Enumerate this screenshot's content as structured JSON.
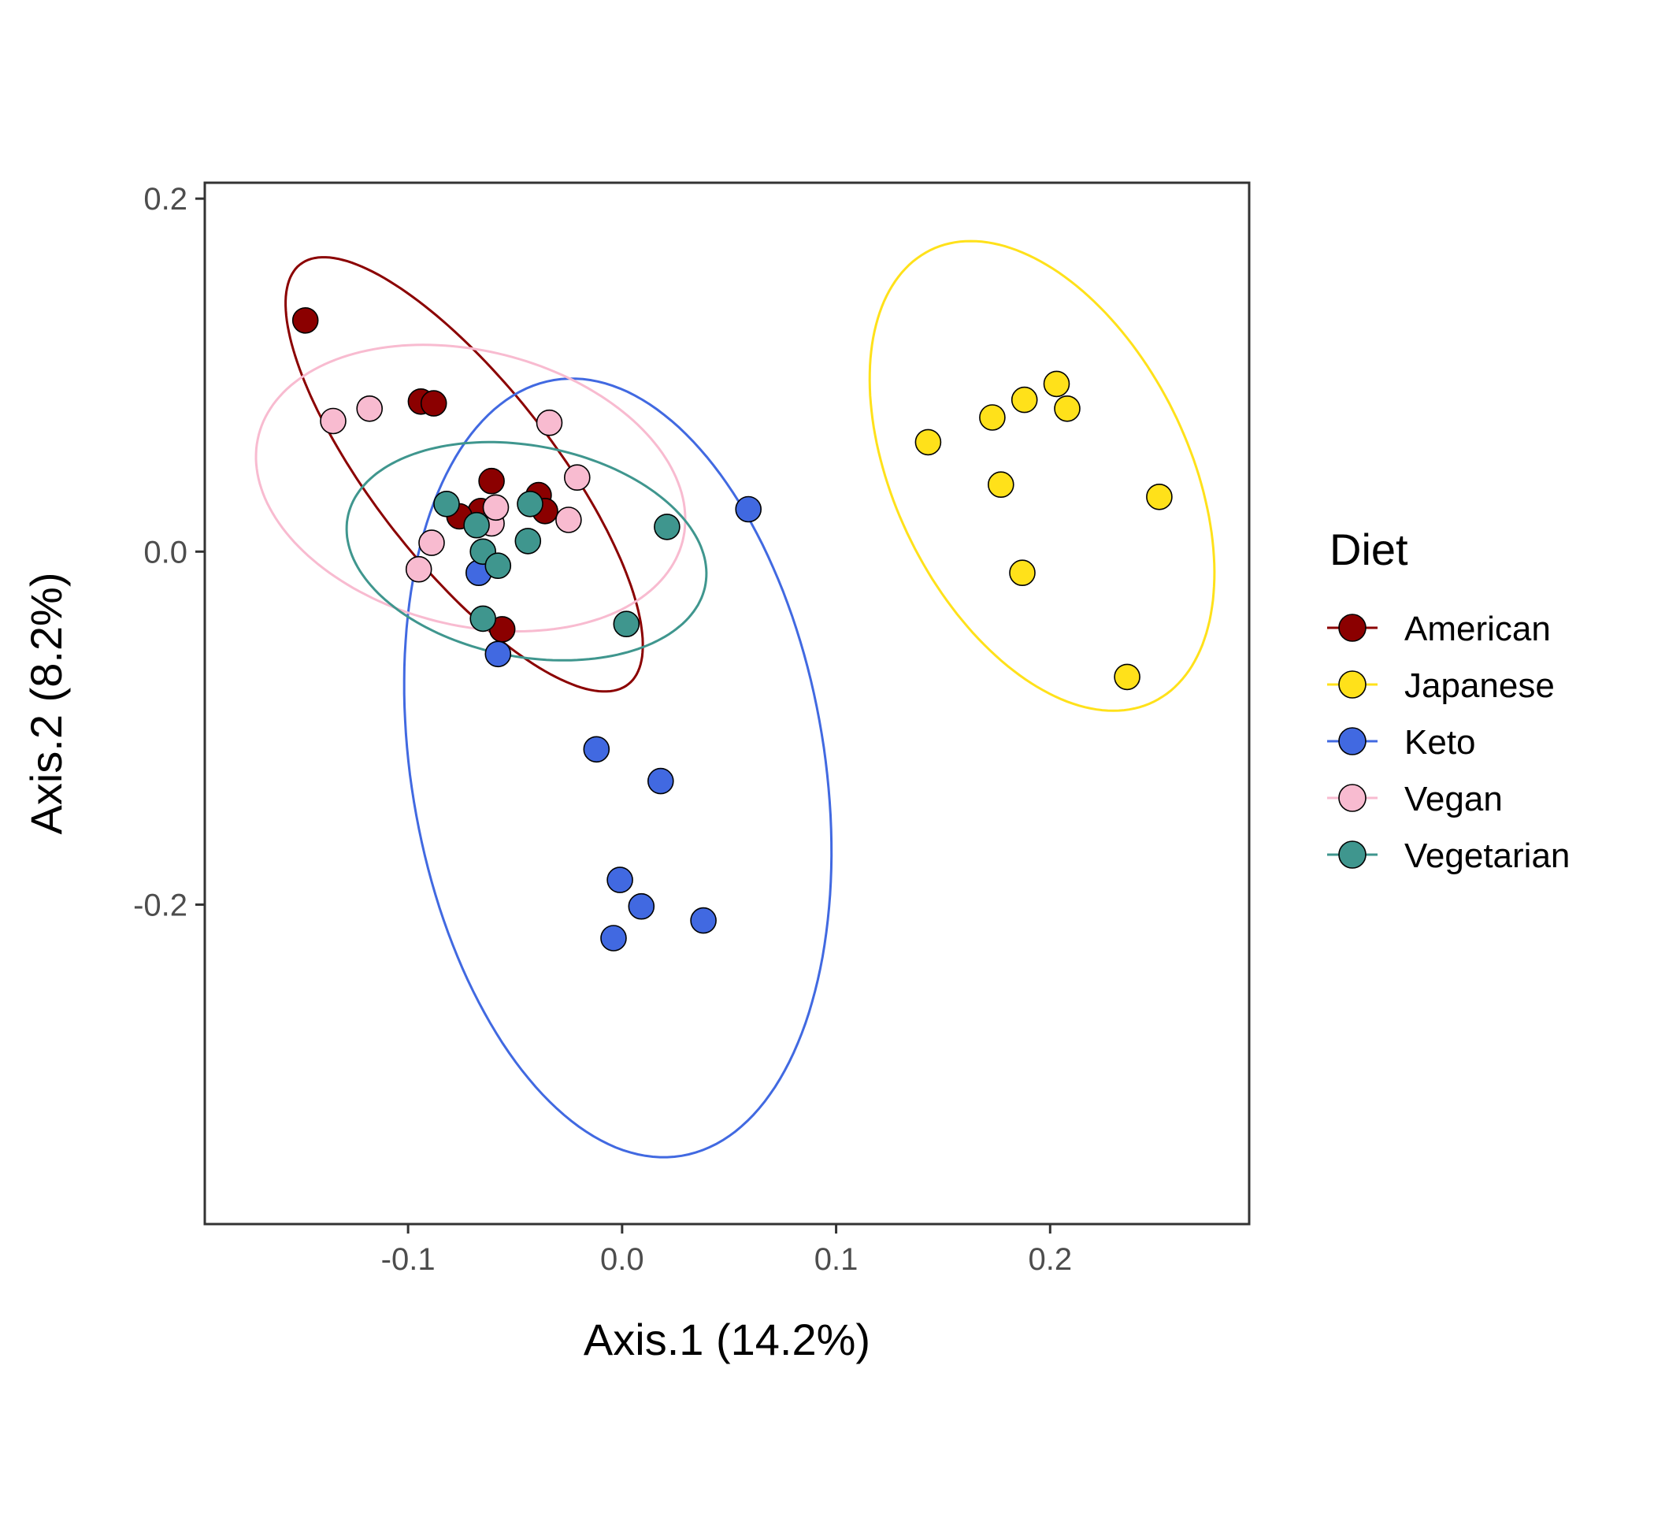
{
  "chart_data": {
    "type": "scatter",
    "title": "",
    "xlabel": "Axis.1 (14.2%)",
    "ylabel": "Axis.2 (8.2%)",
    "xlim": [
      -0.195,
      0.293
    ],
    "ylim": [
      -0.381,
      0.209
    ],
    "xticks": [
      -0.1,
      0.0,
      0.1,
      0.2
    ],
    "yticks": [
      0.2,
      0.0,
      -0.2
    ],
    "xtick_labels": [
      "-0.1",
      "0.0",
      "0.1",
      "0.2"
    ],
    "ytick_labels": [
      "0.2",
      "0.0",
      "-0.2"
    ],
    "grid": false,
    "ellipses": "95% confidence ellipse per group",
    "legend": {
      "title": "Diet",
      "placement": "right"
    },
    "series": [
      {
        "name": "American",
        "color": "#8B0000",
        "points": [
          [
            -0.148,
            0.131
          ],
          [
            -0.094,
            0.085
          ],
          [
            -0.088,
            0.084
          ],
          [
            -0.066,
            0.023
          ],
          [
            -0.061,
            0.04
          ],
          [
            -0.039,
            0.032
          ],
          [
            -0.036,
            0.023
          ],
          [
            -0.076,
            0.02
          ],
          [
            -0.056,
            -0.044
          ]
        ]
      },
      {
        "name": "Japanese",
        "color": "#FFE11A",
        "points": [
          [
            0.143,
            0.062
          ],
          [
            0.173,
            0.076
          ],
          [
            0.188,
            0.086
          ],
          [
            0.203,
            0.095
          ],
          [
            0.208,
            0.081
          ],
          [
            0.177,
            0.038
          ],
          [
            0.251,
            0.031
          ],
          [
            0.187,
            -0.012
          ],
          [
            0.236,
            -0.071
          ]
        ]
      },
      {
        "name": "Keto",
        "color": "#4169E1",
        "points": [
          [
            0.059,
            0.024
          ],
          [
            -0.067,
            -0.012
          ],
          [
            -0.058,
            -0.058
          ],
          [
            -0.012,
            -0.112
          ],
          [
            0.018,
            -0.13
          ],
          [
            -0.001,
            -0.186
          ],
          [
            0.009,
            -0.201
          ],
          [
            -0.004,
            -0.219
          ],
          [
            0.038,
            -0.209
          ]
        ]
      },
      {
        "name": "Vegan",
        "color": "#F8BBD0",
        "points": [
          [
            -0.135,
            0.074
          ],
          [
            -0.118,
            0.081
          ],
          [
            -0.034,
            0.073
          ],
          [
            -0.021,
            0.042
          ],
          [
            -0.061,
            0.016
          ],
          [
            -0.059,
            0.025
          ],
          [
            -0.025,
            0.018
          ],
          [
            -0.089,
            0.005
          ],
          [
            -0.095,
            -0.01
          ]
        ]
      },
      {
        "name": "Vegetarian",
        "color": "#3F968E",
        "points": [
          [
            -0.082,
            0.027
          ],
          [
            -0.068,
            0.015
          ],
          [
            -0.065,
            0.0
          ],
          [
            -0.043,
            0.027
          ],
          [
            -0.044,
            0.006
          ],
          [
            -0.058,
            -0.008
          ],
          [
            0.021,
            0.014
          ],
          [
            -0.065,
            -0.038
          ],
          [
            0.002,
            -0.041
          ]
        ]
      }
    ]
  }
}
